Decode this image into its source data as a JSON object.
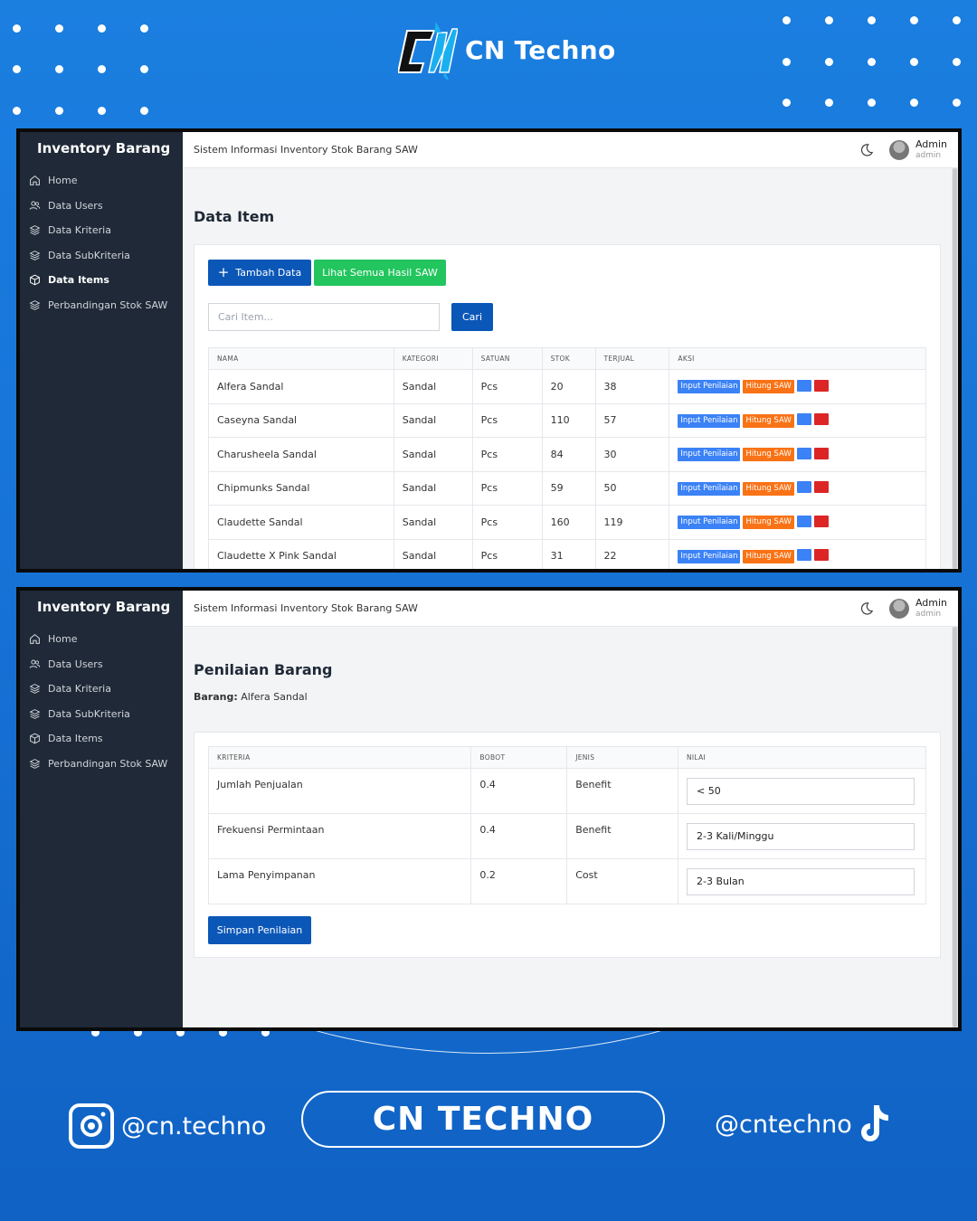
{
  "brand": {
    "name": "CN Techno",
    "logo_text": "CN"
  },
  "colors": {
    "bg": "#1773d6",
    "sidebar": "#1f2937",
    "primary": "#0b57b8",
    "success": "#22c55e",
    "info": "#3b82f6",
    "warning": "#f97316",
    "danger": "#dc2626"
  },
  "sidebar": {
    "title": "Inventory Barang",
    "items": [
      {
        "label": "Home",
        "icon": "home-icon"
      },
      {
        "label": "Data Users",
        "icon": "users-icon"
      },
      {
        "label": "Data Kriteria",
        "icon": "layers-icon"
      },
      {
        "label": "Data SubKriteria",
        "icon": "layers-icon"
      },
      {
        "label": "Data Items",
        "icon": "box-icon"
      },
      {
        "label": "Perbandingan Stok SAW",
        "icon": "layers-icon"
      }
    ]
  },
  "topbar": {
    "app_title": "Sistem Informasi Inventory Stok Barang SAW",
    "user_name": "Admin",
    "user_role": "admin"
  },
  "screen1": {
    "title": "Data Item",
    "add_button": "Tambah Data",
    "saw_button": "Lihat Semua Hasil SAW",
    "search_placeholder": "Cari Item...",
    "search_button": "Cari",
    "columns": [
      "NAMA",
      "KATEGORI",
      "SATUAN",
      "STOK",
      "TERJUAL",
      "AKSI"
    ],
    "rows": [
      {
        "nama": "Alfera Sandal",
        "kategori": "Sandal",
        "satuan": "Pcs",
        "stok": "20",
        "terjual": "38"
      },
      {
        "nama": "Caseyna Sandal",
        "kategori": "Sandal",
        "satuan": "Pcs",
        "stok": "110",
        "terjual": "57"
      },
      {
        "nama": "Charusheela Sandal",
        "kategori": "Sandal",
        "satuan": "Pcs",
        "stok": "84",
        "terjual": "30"
      },
      {
        "nama": "Chipmunks Sandal",
        "kategori": "Sandal",
        "satuan": "Pcs",
        "stok": "59",
        "terjual": "50"
      },
      {
        "nama": "Claudette Sandal",
        "kategori": "Sandal",
        "satuan": "Pcs",
        "stok": "160",
        "terjual": "119"
      },
      {
        "nama": "Claudette X Pink Sandal",
        "kategori": "Sandal",
        "satuan": "Pcs",
        "stok": "31",
        "terjual": "22"
      }
    ],
    "actions": {
      "input": "Input Penilaian",
      "hitung": "Hitung SAW"
    }
  },
  "screen2": {
    "title": "Penilaian Barang",
    "barang_label": "Barang:",
    "barang_value": "Alfera Sandal",
    "columns": [
      "KRITERIA",
      "BOBOT",
      "JENIS",
      "NILAI"
    ],
    "rows": [
      {
        "kriteria": "Jumlah Penjualan",
        "bobot": "0.4",
        "jenis": "Benefit",
        "nilai": "< 50"
      },
      {
        "kriteria": "Frekuensi Permintaan",
        "bobot": "0.4",
        "jenis": "Benefit",
        "nilai": "2-3 Kali/Minggu"
      },
      {
        "kriteria": "Lama Penyimpanan",
        "bobot": "0.2",
        "jenis": "Cost",
        "nilai": "2-3 Bulan"
      }
    ],
    "save_button": "Simpan Penilaian"
  },
  "footer": {
    "instagram": "@cn.techno",
    "center": "CN TECHNO",
    "tiktok": "@cntechno"
  }
}
